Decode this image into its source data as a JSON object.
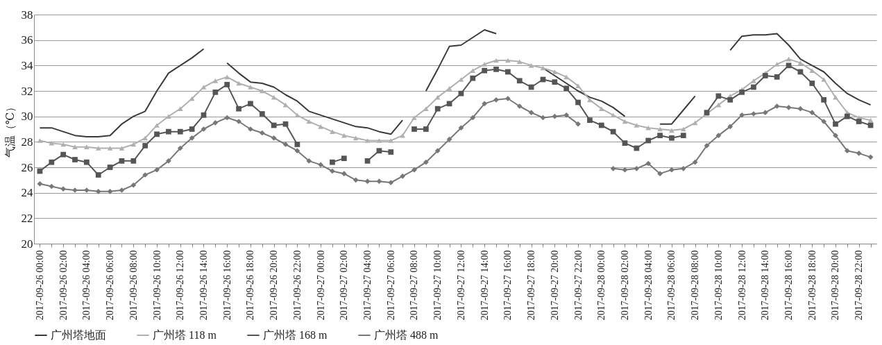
{
  "chart_data": {
    "type": "line",
    "ylabel": "气温（℃）",
    "categories": [
      "2017-09-26 00:00",
      null,
      "2017-09-26 02:00",
      null,
      "2017-09-26 04:00",
      null,
      "2017-09-26 06:00",
      null,
      "2017-09-26 08:00",
      null,
      "2017-09-26 10:00",
      null,
      "2017-09-26 12:00",
      null,
      "2017-09-26 14:00",
      null,
      "2017-09-26 16:00",
      null,
      "2017-09-26 18:00",
      null,
      "2017-09-26 20:00",
      null,
      "2017-09-26 22:00",
      null,
      "2017-09-27 00:00",
      null,
      "2017-09-27 02:00",
      null,
      "2017-09-27 04:00",
      null,
      "2017-09-27 06:00",
      null,
      "2017-09-27 08:00",
      null,
      "2017-09-27 10:00",
      null,
      "2017-09-27 12:00",
      null,
      "2017-09-27 14:00",
      null,
      "2017-09-27 16:00",
      null,
      "2017-09-27 18:00",
      null,
      "2017-09-27 20:00",
      null,
      "2017-09-27 22:00",
      null,
      "2017-09-28 00:00",
      null,
      "2017-09-28 02:00",
      null,
      "2017-09-28 04:00",
      null,
      "2017-09-28 06:00",
      null,
      "2017-09-28 08:00",
      null,
      "2017-09-28 10:00",
      null,
      "2017-09-28 12:00",
      null,
      "2017-09-28 14:00",
      null,
      "2017-09-28 16:00",
      null,
      "2017-09-28 18:00",
      null,
      "2017-09-28 20:00",
      null,
      "2017-09-28 22:00",
      null
    ],
    "series": [
      {
        "name": "广州塔地面",
        "color": "#3a3a3a",
        "marker": "none",
        "values": [
          29.1,
          29.1,
          28.8,
          28.5,
          28.4,
          28.4,
          28.5,
          29.4,
          30.0,
          30.4,
          32.0,
          33.4,
          34.0,
          34.6,
          35.3,
          null,
          34.2,
          33.4,
          32.7,
          32.6,
          32.3,
          31.7,
          31.2,
          30.4,
          30.1,
          29.8,
          29.5,
          29.2,
          29.1,
          28.8,
          28.6,
          29.7,
          null,
          32.0,
          33.7,
          35.5,
          35.6,
          36.2,
          36.8,
          36.5,
          null,
          null,
          null,
          33.8,
          33.2,
          32.6,
          32.0,
          31.5,
          31.2,
          30.7,
          30.0,
          null,
          null,
          29.4,
          29.4,
          30.5,
          31.6,
          null,
          null,
          35.2,
          36.3,
          36.4,
          36.4,
          36.5,
          35.6,
          34.5,
          34.0,
          33.5,
          32.6,
          31.8,
          31.3,
          30.9
        ]
      },
      {
        "name": "广州塔 118 m",
        "color": "#b0b0b0",
        "marker": "triangle",
        "values": [
          28.1,
          27.9,
          27.8,
          27.6,
          27.6,
          27.5,
          27.5,
          27.5,
          27.8,
          28.3,
          29.3,
          30.0,
          30.6,
          31.4,
          32.3,
          32.8,
          33.1,
          32.6,
          32.3,
          32.0,
          31.5,
          30.9,
          30.1,
          29.6,
          29.2,
          28.8,
          28.5,
          28.3,
          28.1,
          28.1,
          28.1,
          28.5,
          29.9,
          30.6,
          31.5,
          32.2,
          32.9,
          33.6,
          34.1,
          34.4,
          34.4,
          34.3,
          34.0,
          33.8,
          33.5,
          33.1,
          32.4,
          31.3,
          30.6,
          30.1,
          29.6,
          29.3,
          29.1,
          29.0,
          28.9,
          29.0,
          29.5,
          30.2,
          30.9,
          31.6,
          32.1,
          32.8,
          33.4,
          34.1,
          34.5,
          34.2,
          33.6,
          32.9,
          31.5,
          30.3,
          29.9,
          29.7
        ]
      },
      {
        "name": "广州塔 168 m",
        "color": "#555555",
        "marker": "square",
        "values": [
          25.7,
          26.4,
          27.0,
          26.6,
          26.4,
          25.4,
          26.0,
          26.5,
          26.5,
          27.7,
          28.6,
          28.8,
          28.8,
          29.0,
          30.1,
          31.9,
          32.5,
          30.6,
          31.0,
          30.2,
          29.3,
          29.4,
          27.8,
          null,
          null,
          26.4,
          26.7,
          null,
          26.5,
          27.3,
          27.2,
          null,
          29.0,
          29.0,
          30.6,
          31.0,
          31.8,
          33.0,
          33.6,
          33.7,
          33.5,
          32.8,
          32.3,
          32.9,
          32.7,
          32.2,
          31.1,
          29.7,
          29.3,
          28.8,
          27.9,
          27.5,
          28.1,
          28.5,
          28.3,
          28.5,
          null,
          30.3,
          31.6,
          31.3,
          31.9,
          32.3,
          33.2,
          33.1,
          34.0,
          33.5,
          32.6,
          31.3,
          29.4,
          30.0,
          29.6,
          29.3
        ]
      },
      {
        "name": "广州塔 488 m",
        "color": "#777777",
        "marker": "diamond",
        "values": [
          24.7,
          24.5,
          24.3,
          24.2,
          24.2,
          24.1,
          24.1,
          24.2,
          24.6,
          25.4,
          25.8,
          26.5,
          27.5,
          28.3,
          29.0,
          29.5,
          29.9,
          29.6,
          29.0,
          28.7,
          28.3,
          27.8,
          27.3,
          26.5,
          26.2,
          25.7,
          25.5,
          25.0,
          24.9,
          24.9,
          24.8,
          25.3,
          25.8,
          26.4,
          27.3,
          28.2,
          29.1,
          29.9,
          31.0,
          31.3,
          31.4,
          30.8,
          30.3,
          29.9,
          30.0,
          30.1,
          29.4,
          null,
          null,
          25.9,
          25.8,
          25.9,
          26.3,
          25.5,
          25.8,
          25.9,
          26.4,
          27.7,
          28.5,
          29.2,
          30.1,
          30.2,
          30.3,
          30.8,
          30.7,
          30.6,
          30.3,
          29.6,
          28.5,
          27.3,
          27.1,
          26.8
        ]
      }
    ],
    "ylim": [
      20,
      38
    ],
    "yticks": [
      20,
      22,
      24,
      26,
      28,
      30,
      32,
      34,
      36,
      38
    ],
    "grid": "y",
    "legend": "bottom"
  }
}
